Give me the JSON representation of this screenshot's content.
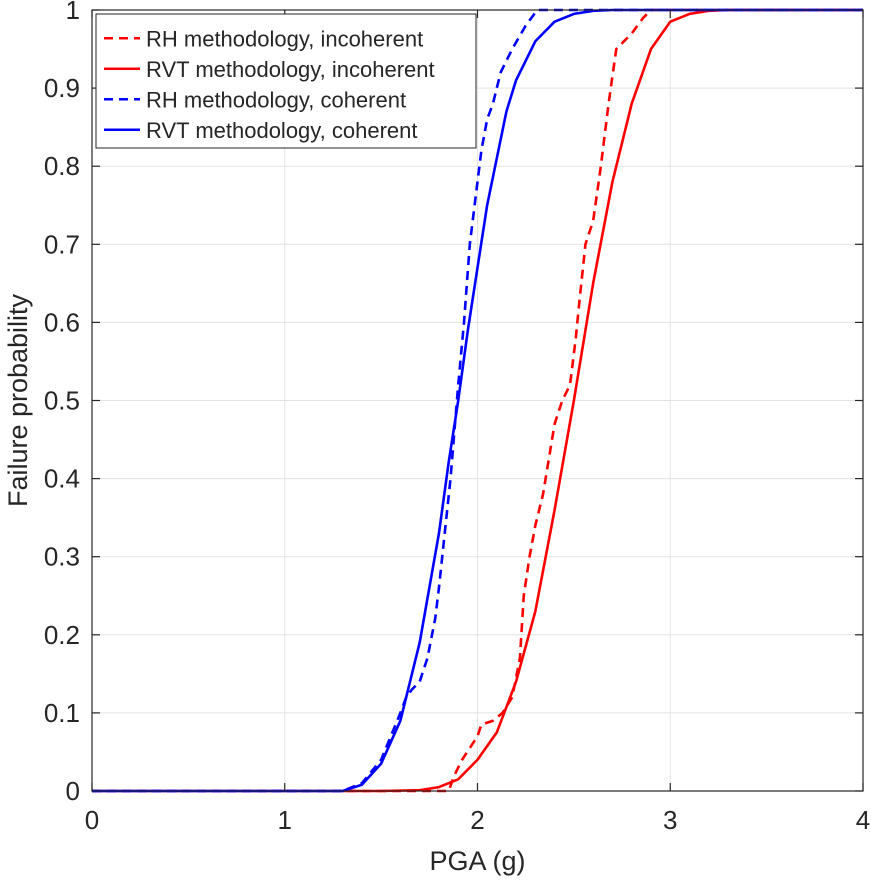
{
  "chart_data": {
    "type": "line",
    "title": "",
    "xlabel": "PGA (g)",
    "ylabel": "Failure probability",
    "xlim": [
      0,
      4
    ],
    "ylim": [
      0,
      1
    ],
    "grid": true,
    "legend_position": "top-left",
    "xticks": [
      0,
      1,
      2,
      3,
      4
    ],
    "xtick_labels": [
      "0",
      "1",
      "2",
      "3",
      "4"
    ],
    "yticks": [
      0,
      0.1,
      0.2,
      0.3,
      0.4,
      0.5,
      0.6,
      0.7,
      0.8,
      0.9,
      1
    ],
    "ytick_labels": [
      "0",
      "0.1",
      "0.2",
      "0.3",
      "0.4",
      "0.5",
      "0.6",
      "0.7",
      "0.8",
      "0.9",
      "1"
    ],
    "series": [
      {
        "name": "RH methodology, incoherent",
        "color": "#ff0000",
        "style": "dashed",
        "x": [
          0,
          1.7,
          1.85,
          1.88,
          1.92,
          1.96,
          2.0,
          2.02,
          2.08,
          2.13,
          2.18,
          2.22,
          2.24,
          2.27,
          2.3,
          2.34,
          2.38,
          2.4,
          2.44,
          2.48,
          2.51,
          2.53,
          2.56,
          2.6,
          2.64,
          2.68,
          2.72,
          2.8,
          2.86,
          2.9,
          4
        ],
        "values": [
          0,
          0,
          0,
          0.02,
          0.04,
          0.055,
          0.07,
          0.085,
          0.09,
          0.1,
          0.12,
          0.17,
          0.25,
          0.3,
          0.34,
          0.38,
          0.44,
          0.47,
          0.5,
          0.52,
          0.58,
          0.63,
          0.7,
          0.73,
          0.8,
          0.88,
          0.95,
          0.97,
          0.99,
          1.0,
          1.0
        ]
      },
      {
        "name": "RVT methodology, incoherent",
        "color": "#ff0000",
        "style": "solid",
        "x": [
          0,
          1.5,
          1.7,
          1.8,
          1.9,
          2.0,
          2.1,
          2.2,
          2.3,
          2.4,
          2.5,
          2.6,
          2.7,
          2.8,
          2.9,
          3.0,
          3.1,
          3.2,
          3.3,
          4
        ],
        "values": [
          0,
          0,
          0.001,
          0.005,
          0.015,
          0.04,
          0.075,
          0.14,
          0.23,
          0.36,
          0.5,
          0.65,
          0.78,
          0.88,
          0.95,
          0.985,
          0.995,
          0.999,
          1.0,
          1.0
        ]
      },
      {
        "name": "RH methodology, coherent",
        "color": "#0000ff",
        "style": "dashed",
        "x": [
          0,
          1.3,
          1.4,
          1.5,
          1.55,
          1.6,
          1.63,
          1.66,
          1.7,
          1.74,
          1.78,
          1.8,
          1.83,
          1.86,
          1.9,
          1.93,
          1.96,
          2.0,
          2.02,
          2.05,
          2.08,
          2.12,
          2.18,
          2.25,
          2.31,
          2.34,
          4
        ],
        "values": [
          0,
          0,
          0.01,
          0.04,
          0.07,
          0.1,
          0.12,
          0.13,
          0.14,
          0.17,
          0.22,
          0.26,
          0.33,
          0.4,
          0.52,
          0.6,
          0.7,
          0.78,
          0.82,
          0.86,
          0.88,
          0.92,
          0.95,
          0.98,
          1.0,
          1.0,
          1.0
        ]
      },
      {
        "name": "RVT methodology, coherent",
        "color": "#0000ff",
        "style": "solid",
        "x": [
          0,
          1.3,
          1.4,
          1.5,
          1.6,
          1.7,
          1.8,
          1.85,
          1.9,
          1.95,
          2.0,
          2.05,
          2.1,
          2.15,
          2.2,
          2.3,
          2.4,
          2.5,
          2.6,
          2.7,
          4
        ],
        "values": [
          0,
          0,
          0.008,
          0.035,
          0.09,
          0.19,
          0.33,
          0.42,
          0.5,
          0.59,
          0.67,
          0.75,
          0.81,
          0.87,
          0.91,
          0.96,
          0.985,
          0.995,
          0.999,
          1.0,
          1.0
        ]
      }
    ]
  }
}
